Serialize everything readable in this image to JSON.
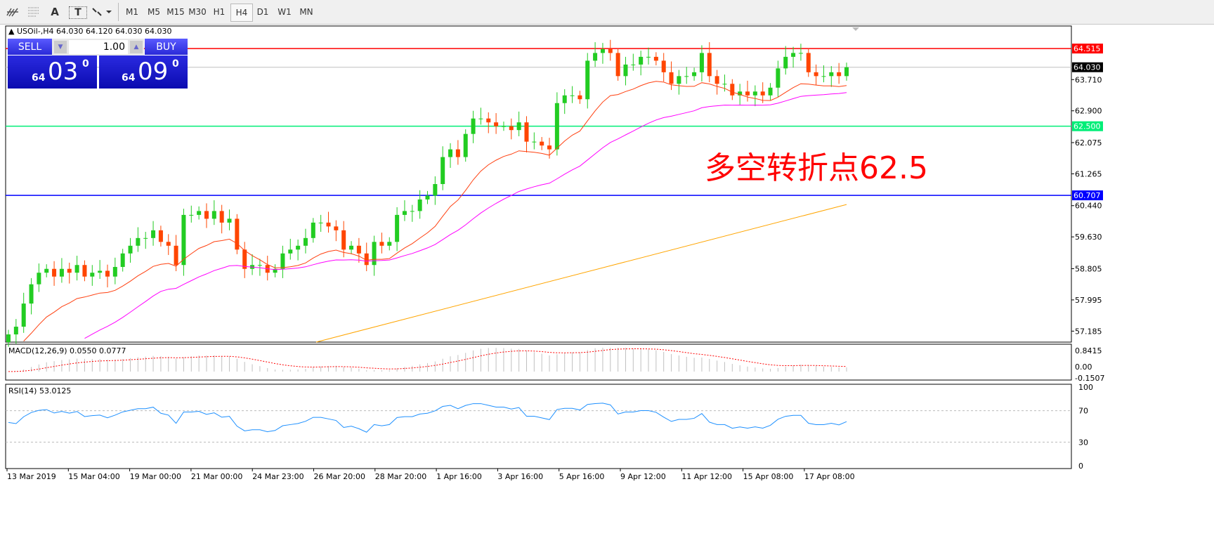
{
  "toolbar": {
    "icons": [
      "chart-line-icon",
      "fibonacci-icon",
      "text-icon",
      "text-label-icon",
      "arrows-icon"
    ],
    "text_icon": "A",
    "label_icon": "T",
    "timeframes": [
      "M1",
      "M5",
      "M15",
      "M30",
      "H1",
      "H4",
      "D1",
      "W1",
      "MN"
    ],
    "active_timeframe": "H4"
  },
  "header": {
    "symbol": "USOil-,H4",
    "ohlc": "64.030 64.120 64.030 64.030"
  },
  "trade_panel": {
    "sell_label": "SELL",
    "buy_label": "BUY",
    "lots": "1.00",
    "sell_big": "64",
    "sell_main": "03",
    "sell_sup": "0",
    "buy_big": "64",
    "buy_main": "09",
    "buy_sup": "0"
  },
  "annotation": {
    "text": "多空转折点62.5",
    "color": "#ff0000"
  },
  "chart_data": {
    "type": "candlestick",
    "symbol": "USOil",
    "timeframe": "H4",
    "ylim": [
      56.9,
      65.1
    ],
    "yticks": [
      "63.710",
      "62.900",
      "62.075",
      "61.265",
      "60.440",
      "59.630",
      "58.805",
      "57.995",
      "57.185"
    ],
    "current_price": "64.030",
    "hlines": [
      {
        "value": "64.515",
        "color": "#ff0000"
      },
      {
        "value": "62.500",
        "color": "#00ee77"
      },
      {
        "value": "60.707",
        "color": "#0000ff"
      }
    ],
    "xticks": [
      "13 Mar 2019",
      "15 Mar 04:00",
      "19 Mar 00:00",
      "21 Mar 00:00",
      "24 Mar 23:00",
      "26 Mar 20:00",
      "28 Mar 20:00",
      "1 Apr 16:00",
      "3 Apr 16:00",
      "5 Apr 16:00",
      "9 Apr 12:00",
      "11 Apr 12:00",
      "15 Apr 08:00",
      "17 Apr 08:00"
    ],
    "closes": [
      57.1,
      57.3,
      57.9,
      58.4,
      58.7,
      58.8,
      58.6,
      58.8,
      58.7,
      58.9,
      58.6,
      58.7,
      58.75,
      58.6,
      58.85,
      59.2,
      59.4,
      59.6,
      59.6,
      59.8,
      59.5,
      59.4,
      58.9,
      60.2,
      60.2,
      60.3,
      60.1,
      60.3,
      60.0,
      60.1,
      59.3,
      58.8,
      58.9,
      58.9,
      58.7,
      58.8,
      59.2,
      59.3,
      59.4,
      59.6,
      60.0,
      60.0,
      59.9,
      59.8,
      59.3,
      59.4,
      59.2,
      58.9,
      59.5,
      59.4,
      59.5,
      60.2,
      60.3,
      60.3,
      60.6,
      60.7,
      61.0,
      61.7,
      61.9,
      61.7,
      62.3,
      62.7,
      62.7,
      62.6,
      62.5,
      62.5,
      62.4,
      62.6,
      62.1,
      62.1,
      62.0,
      61.9,
      63.1,
      63.3,
      63.3,
      63.2,
      64.2,
      64.4,
      64.5,
      64.4,
      63.8,
      64.1,
      64.1,
      64.3,
      64.3,
      64.2,
      63.9,
      63.6,
      63.8,
      63.8,
      63.9,
      64.4,
      63.8,
      63.6,
      63.6,
      63.3,
      63.4,
      63.3,
      63.4,
      63.3,
      63.5,
      64.0,
      64.3,
      64.4,
      64.4,
      63.9,
      63.8,
      63.8,
      63.9,
      63.8,
      64.03
    ],
    "moving_averages": [
      {
        "color": "#ff4010"
      },
      {
        "color": "#ff00ff"
      },
      {
        "color": "#ffa500",
        "from": 56.9,
        "to": 60.47
      }
    ],
    "up_color": "#22cc22",
    "down_color": "#ff4500",
    "macd": {
      "label": "MACD(12,26,9) 0.0550 0.0777",
      "ylim": [
        -0.1507,
        0.8415
      ],
      "yticks": [
        "0.8415",
        "0.00",
        "-0.1507"
      ],
      "signal_color": "#ff0000",
      "hist_color": "#c0c0c0"
    },
    "rsi": {
      "label": "RSI(14) 53.0125",
      "ylim": [
        0,
        100
      ],
      "yticks": [
        "100",
        "70",
        "30",
        "0"
      ],
      "levels": [
        70,
        30
      ],
      "color": "#1e90ff"
    }
  }
}
